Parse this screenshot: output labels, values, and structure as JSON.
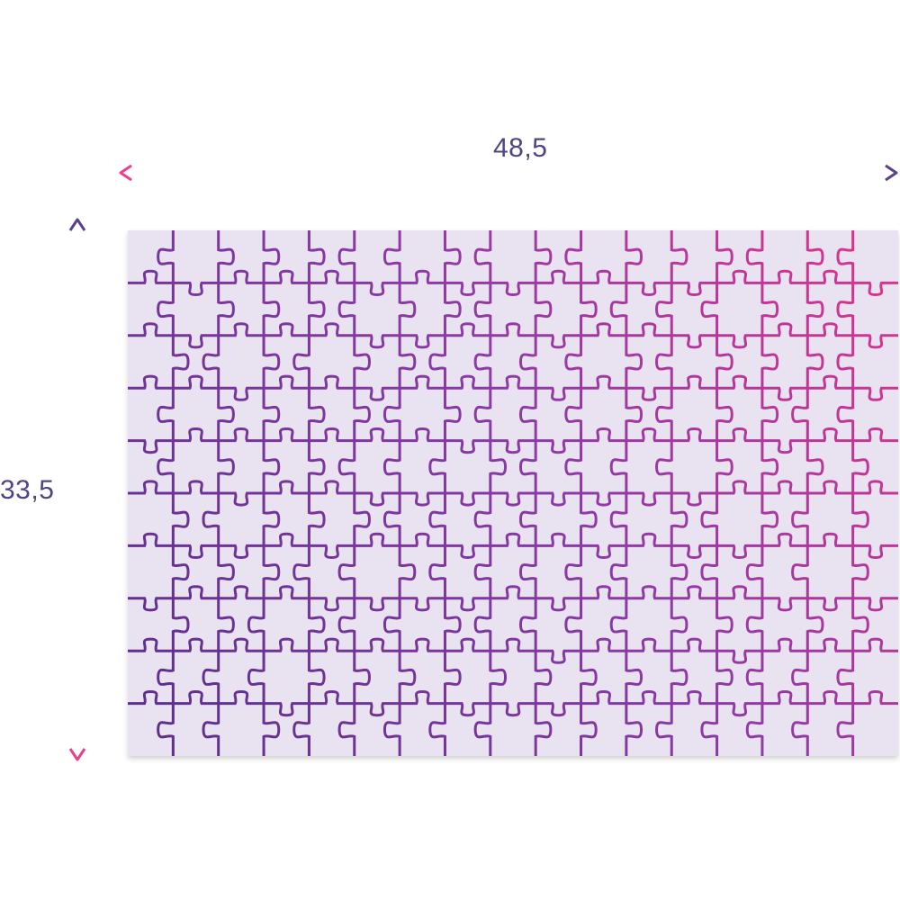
{
  "dimensions": {
    "width_label": "48,5",
    "height_label": "33,5"
  },
  "puzzle": {
    "columns": 17,
    "rows": 10,
    "board_color": "#e9e3f1",
    "line_colors": [
      "#5a2e8a",
      "#8c3aa6",
      "#e0348c"
    ],
    "arrow_colors": {
      "horizontal": [
        "#e8408f",
        "#5a3f8c"
      ],
      "vertical": [
        "#5a3f8c",
        "#e8408f"
      ]
    }
  }
}
